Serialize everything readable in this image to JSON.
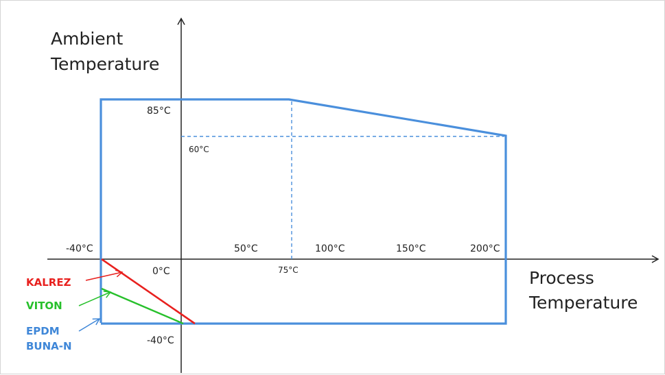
{
  "axes": {
    "y_title": [
      "Ambient",
      "Temperature"
    ],
    "x_title": [
      "Process",
      "Temperature"
    ]
  },
  "ticks": {
    "x_neg40": "-40°C",
    "x_0": "0°C",
    "x_50": "50°C",
    "x_75": "75°C",
    "x_100": "100°C",
    "x_150": "150°C",
    "x_200": "200°C",
    "y_85": "85°C",
    "y_60": "60°C",
    "y_neg40": "-40°C"
  },
  "materials": [
    {
      "label": "KALREZ",
      "color": "#e8201e"
    },
    {
      "label": "VITON",
      "color": "#27c02b"
    },
    {
      "label": "EPDM",
      "color": "#3f87d8"
    },
    {
      "label": "BUNA-N",
      "color": "#3f87d8"
    }
  ],
  "colors": {
    "envelope": "#4a8fdc",
    "axis": "#222222",
    "kalrez": "#e8201e",
    "viton": "#27c02b",
    "epdm": "#3f87d8"
  }
}
